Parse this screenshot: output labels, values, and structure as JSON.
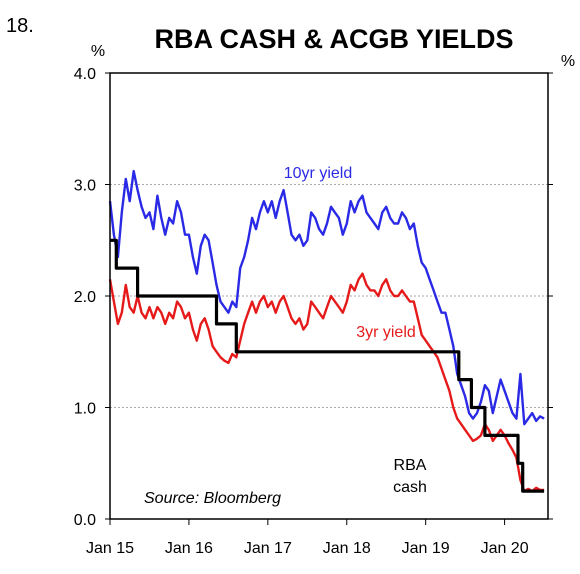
{
  "figure_number": "18.",
  "chart_data": {
    "type": "line",
    "title": "RBA CASH & ACGB YIELDS",
    "ylabel_left": "%",
    "ylabel_right": "%",
    "source": "Source: Bloomberg",
    "ylim": [
      0,
      4
    ],
    "yticks": [
      "0.0",
      "1.0",
      "2.0",
      "3.0",
      "4.0"
    ],
    "xlim": [
      2015.0,
      2020.55
    ],
    "xticks": [
      {
        "label": "Jan 15",
        "x": 2015.0
      },
      {
        "label": "Jan 16",
        "x": 2016.0
      },
      {
        "label": "Jan 17",
        "x": 2017.0
      },
      {
        "label": "Jan 18",
        "x": 2018.0
      },
      {
        "label": "Jan 19",
        "x": 2019.0
      },
      {
        "label": "Jan 20",
        "x": 2020.0
      }
    ],
    "grid": true,
    "series": [
      {
        "name": "10yr yield",
        "color": "#2a2ae6",
        "x": [
          2015.0,
          2015.05,
          2015.1,
          2015.15,
          2015.2,
          2015.25,
          2015.3,
          2015.35,
          2015.4,
          2015.45,
          2015.5,
          2015.55,
          2015.6,
          2015.65,
          2015.7,
          2015.75,
          2015.8,
          2015.85,
          2015.9,
          2015.95,
          2016.0,
          2016.05,
          2016.1,
          2016.15,
          2016.2,
          2016.25,
          2016.3,
          2016.35,
          2016.4,
          2016.45,
          2016.5,
          2016.55,
          2016.6,
          2016.65,
          2016.7,
          2016.75,
          2016.8,
          2016.85,
          2016.9,
          2016.95,
          2017.0,
          2017.05,
          2017.1,
          2017.15,
          2017.2,
          2017.25,
          2017.3,
          2017.35,
          2017.4,
          2017.45,
          2017.5,
          2017.55,
          2017.6,
          2017.65,
          2017.7,
          2017.75,
          2017.8,
          2017.85,
          2017.9,
          2017.95,
          2018.0,
          2018.05,
          2018.1,
          2018.15,
          2018.2,
          2018.25,
          2018.3,
          2018.35,
          2018.4,
          2018.45,
          2018.5,
          2018.55,
          2018.6,
          2018.65,
          2018.7,
          2018.75,
          2018.8,
          2018.85,
          2018.9,
          2018.95,
          2019.0,
          2019.05,
          2019.1,
          2019.15,
          2019.2,
          2019.25,
          2019.3,
          2019.35,
          2019.4,
          2019.45,
          2019.5,
          2019.55,
          2019.6,
          2019.65,
          2019.7,
          2019.75,
          2019.8,
          2019.85,
          2019.9,
          2019.95,
          2020.0,
          2020.05,
          2020.1,
          2020.15,
          2020.2,
          2020.25,
          2020.3,
          2020.35,
          2020.4,
          2020.45,
          2020.5
        ],
        "values": [
          2.85,
          2.55,
          2.35,
          2.75,
          3.05,
          2.85,
          3.12,
          2.95,
          2.8,
          2.7,
          2.75,
          2.6,
          2.9,
          2.7,
          2.55,
          2.7,
          2.65,
          2.85,
          2.75,
          2.55,
          2.55,
          2.35,
          2.2,
          2.45,
          2.55,
          2.5,
          2.3,
          2.1,
          1.95,
          1.9,
          1.85,
          1.95,
          1.9,
          2.25,
          2.35,
          2.5,
          2.7,
          2.6,
          2.75,
          2.85,
          2.75,
          2.85,
          2.7,
          2.85,
          2.95,
          2.75,
          2.55,
          2.5,
          2.55,
          2.45,
          2.5,
          2.75,
          2.7,
          2.6,
          2.55,
          2.65,
          2.8,
          2.75,
          2.7,
          2.55,
          2.65,
          2.85,
          2.75,
          2.85,
          2.9,
          2.75,
          2.7,
          2.65,
          2.6,
          2.75,
          2.8,
          2.7,
          2.65,
          2.65,
          2.75,
          2.7,
          2.6,
          2.65,
          2.45,
          2.3,
          2.25,
          2.15,
          2.05,
          1.95,
          1.85,
          1.85,
          1.7,
          1.55,
          1.3,
          1.2,
          1.1,
          0.95,
          0.9,
          0.95,
          1.05,
          1.2,
          1.15,
          0.95,
          1.1,
          1.25,
          1.15,
          1.05,
          0.95,
          0.9,
          1.3,
          0.85,
          0.9,
          0.95,
          0.88,
          0.92,
          0.9
        ]
      },
      {
        "name": "3yr yield",
        "color": "#e61a1a",
        "x": [
          2015.0,
          2015.05,
          2015.1,
          2015.15,
          2015.2,
          2015.25,
          2015.3,
          2015.35,
          2015.4,
          2015.45,
          2015.5,
          2015.55,
          2015.6,
          2015.65,
          2015.7,
          2015.75,
          2015.8,
          2015.85,
          2015.9,
          2015.95,
          2016.0,
          2016.05,
          2016.1,
          2016.15,
          2016.2,
          2016.25,
          2016.3,
          2016.35,
          2016.4,
          2016.45,
          2016.5,
          2016.55,
          2016.6,
          2016.65,
          2016.7,
          2016.75,
          2016.8,
          2016.85,
          2016.9,
          2016.95,
          2017.0,
          2017.05,
          2017.1,
          2017.15,
          2017.2,
          2017.25,
          2017.3,
          2017.35,
          2017.4,
          2017.45,
          2017.5,
          2017.55,
          2017.6,
          2017.65,
          2017.7,
          2017.75,
          2017.8,
          2017.85,
          2017.9,
          2017.95,
          2018.0,
          2018.05,
          2018.1,
          2018.15,
          2018.2,
          2018.25,
          2018.3,
          2018.35,
          2018.4,
          2018.45,
          2018.5,
          2018.55,
          2018.6,
          2018.65,
          2018.7,
          2018.75,
          2018.8,
          2018.85,
          2018.9,
          2018.95,
          2019.0,
          2019.05,
          2019.1,
          2019.15,
          2019.2,
          2019.25,
          2019.3,
          2019.35,
          2019.4,
          2019.45,
          2019.5,
          2019.55,
          2019.6,
          2019.65,
          2019.7,
          2019.75,
          2019.8,
          2019.85,
          2019.9,
          2019.95,
          2020.0,
          2020.05,
          2020.1,
          2020.15,
          2020.2,
          2020.25,
          2020.3,
          2020.35,
          2020.4,
          2020.45,
          2020.5
        ],
        "values": [
          2.15,
          1.95,
          1.75,
          1.85,
          2.1,
          1.9,
          1.85,
          2.0,
          1.85,
          1.8,
          1.9,
          1.8,
          1.9,
          1.85,
          1.75,
          1.85,
          1.8,
          1.95,
          1.9,
          1.8,
          1.85,
          1.7,
          1.6,
          1.75,
          1.8,
          1.7,
          1.55,
          1.5,
          1.45,
          1.42,
          1.4,
          1.48,
          1.45,
          1.6,
          1.75,
          1.85,
          1.95,
          1.85,
          1.95,
          2.0,
          1.9,
          1.95,
          1.85,
          1.95,
          2.0,
          1.9,
          1.8,
          1.75,
          1.8,
          1.7,
          1.75,
          1.95,
          1.9,
          1.85,
          1.8,
          1.9,
          2.0,
          1.95,
          1.9,
          1.85,
          1.95,
          2.1,
          2.05,
          2.15,
          2.2,
          2.1,
          2.05,
          2.05,
          2.0,
          2.1,
          2.15,
          2.05,
          2.0,
          2.0,
          2.05,
          2.0,
          1.95,
          1.95,
          1.8,
          1.65,
          1.6,
          1.55,
          1.5,
          1.45,
          1.35,
          1.25,
          1.15,
          1.0,
          0.9,
          0.85,
          0.8,
          0.75,
          0.7,
          0.72,
          0.75,
          0.85,
          0.8,
          0.7,
          0.75,
          0.8,
          0.75,
          0.68,
          0.62,
          0.55,
          0.35,
          0.25,
          0.27,
          0.25,
          0.28,
          0.26,
          0.26
        ]
      },
      {
        "name": "RBA cash",
        "color": "#000000",
        "step": true,
        "x": [
          2015.0,
          2015.08,
          2015.35,
          2015.4,
          2016.35,
          2016.6,
          2016.65,
          2019.42,
          2019.58,
          2019.75,
          2020.17,
          2020.23,
          2020.5
        ],
        "values": [
          2.5,
          2.25,
          2.0,
          2.0,
          1.75,
          1.5,
          1.5,
          1.25,
          1.0,
          0.75,
          0.5,
          0.25,
          0.25
        ]
      }
    ],
    "annotations": {
      "ten_year": "10yr yield",
      "three_year": "3yr yield",
      "rba_line1": "RBA",
      "rba_line2": "cash"
    }
  }
}
